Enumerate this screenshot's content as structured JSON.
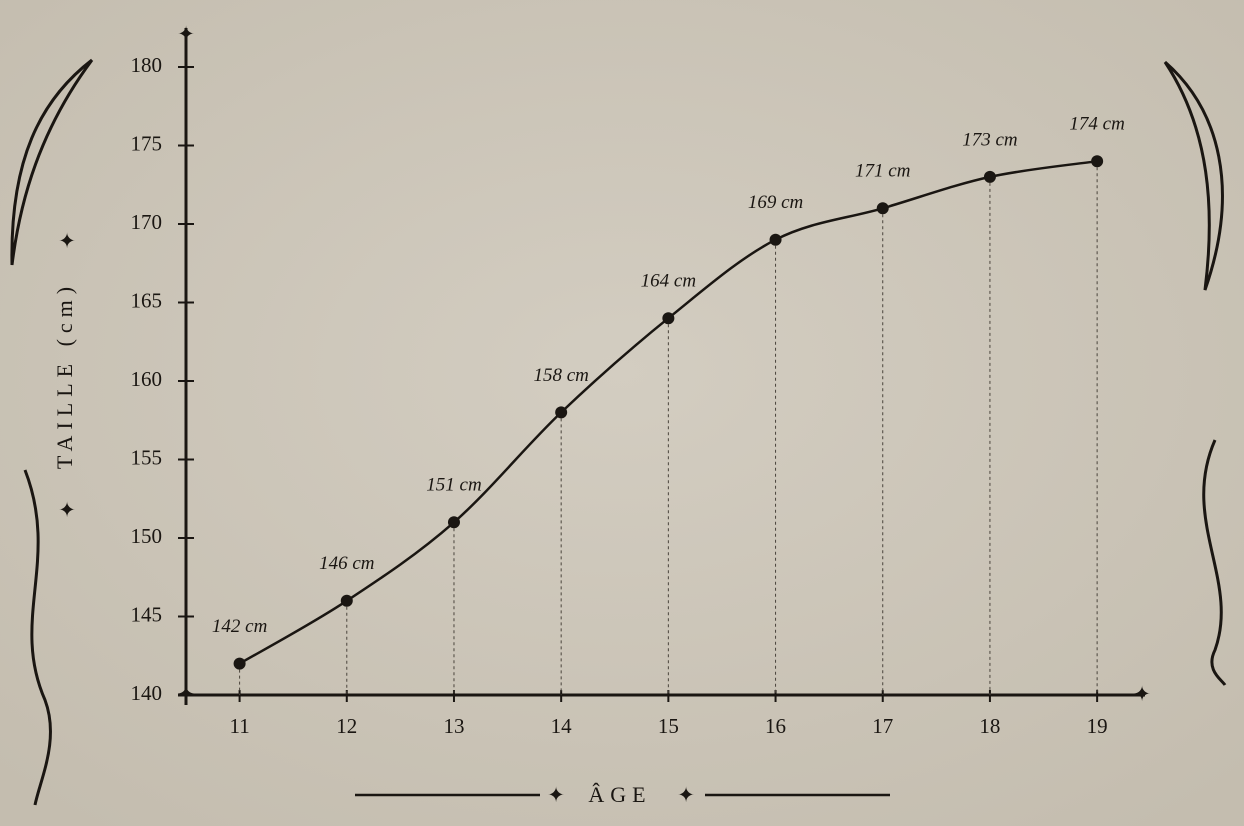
{
  "chart_data": {
    "type": "line",
    "x": [
      11,
      12,
      13,
      14,
      15,
      16,
      17,
      18,
      19
    ],
    "series": [
      {
        "color": "#1a1612",
        "values": [
          142,
          146,
          151,
          158,
          164,
          169,
          171,
          173,
          174
        ],
        "value_labels": [
          "142 cm",
          "146 cm",
          "151 cm",
          "158 cm",
          "164 cm",
          "169 cm",
          "171 cm",
          "173 cm",
          "174 cm"
        ]
      }
    ],
    "xlabel": "ÂGE",
    "ylabel": "TAILLE (cm)",
    "xlim": [
      10.5,
      19.4
    ],
    "xticks": [
      11,
      12,
      13,
      14,
      15,
      16,
      17,
      18,
      19
    ],
    "ylim": [
      140,
      180
    ],
    "yticks": [
      140,
      145,
      150,
      155,
      160,
      165,
      170,
      175,
      180
    ],
    "drop_lines": true
  }
}
